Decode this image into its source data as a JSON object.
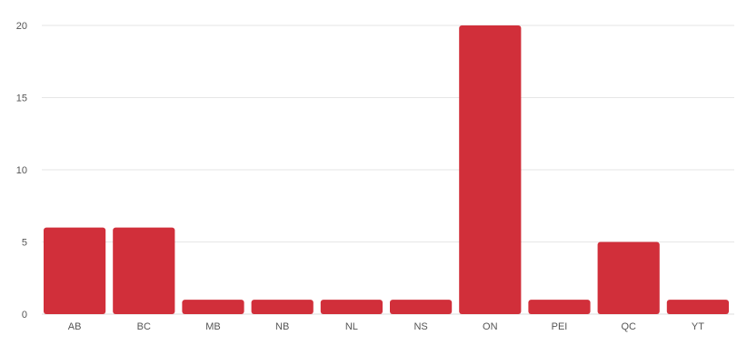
{
  "chart_data": {
    "type": "bar",
    "categories": [
      "AB",
      "BC",
      "MB",
      "NB",
      "NL",
      "NS",
      "ON",
      "PEI",
      "QC",
      "YT"
    ],
    "values": [
      6,
      6,
      1,
      1,
      1,
      1,
      20,
      1,
      5,
      1
    ],
    "ylim": [
      0,
      20
    ],
    "yticks": [
      "0",
      "5",
      "10",
      "15",
      "20"
    ],
    "grid": true,
    "legend": "none",
    "title": "",
    "xlabel": "",
    "ylabel": ""
  },
  "colors": {
    "bar": "#d12f3a",
    "grid": "#e6e6e6",
    "tick_text": "#555555"
  }
}
